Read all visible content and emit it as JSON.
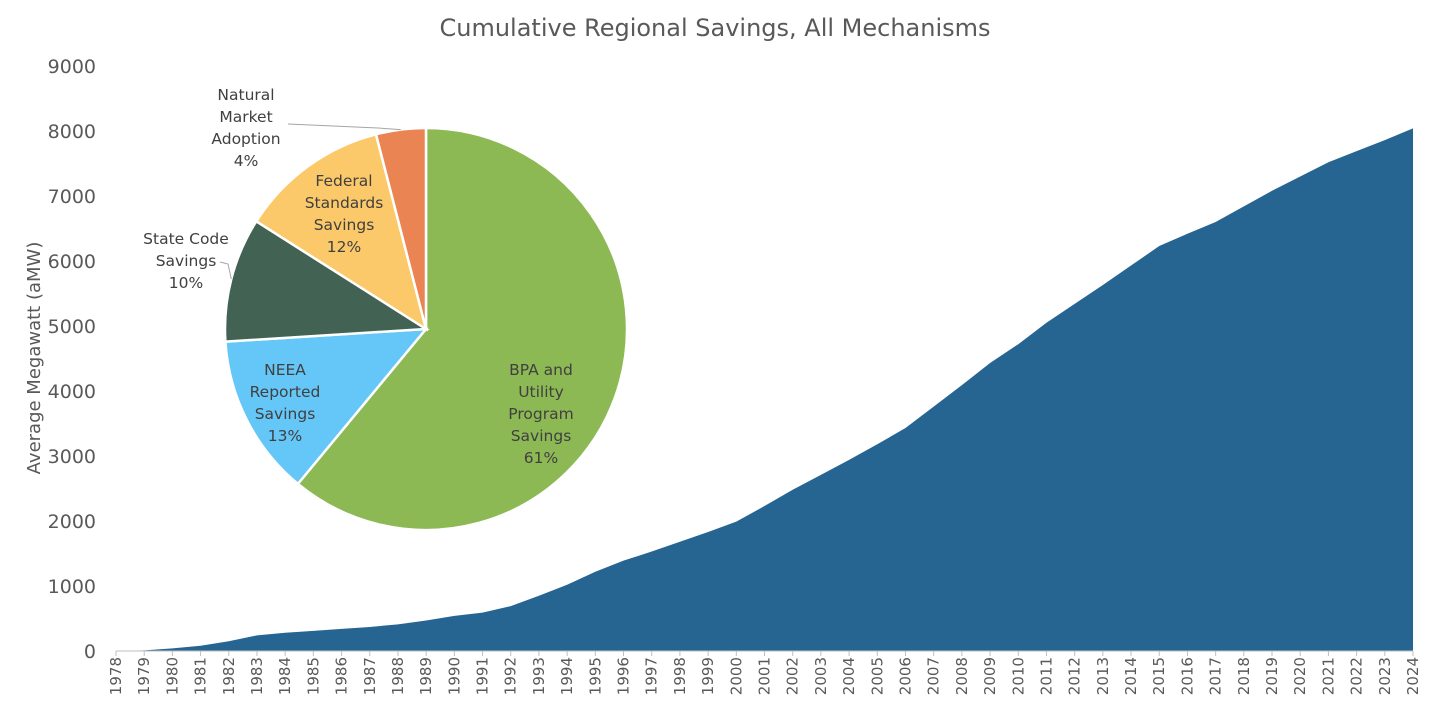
{
  "chart_data": [
    {
      "type": "area",
      "title": "Cumulative Regional Savings, All Mechanisms",
      "xlabel": "",
      "ylabel": "Average Megawatt (aMW)",
      "ylim": [
        0,
        9000
      ],
      "yticks": [
        0,
        1000,
        2000,
        3000,
        4000,
        5000,
        6000,
        7000,
        8000,
        9000
      ],
      "grid": false,
      "legend": "none",
      "colors": {
        "area": "#266492",
        "text": "#595959"
      },
      "x": [
        "1978",
        "1979",
        "1980",
        "1981",
        "1982",
        "1983",
        "1984",
        "1985",
        "1986",
        "1987",
        "1988",
        "1989",
        "1990",
        "1991",
        "1992",
        "1993",
        "1994",
        "1995",
        "1996",
        "1997",
        "1998",
        "1999",
        "2000",
        "2001",
        "2002",
        "2003",
        "2004",
        "2005",
        "2006",
        "2007",
        "2008",
        "2009",
        "2010",
        "2011",
        "2012",
        "2013",
        "2014",
        "2015",
        "2016",
        "2017",
        "2018",
        "2019",
        "2020",
        "2021",
        "2022",
        "2023",
        "2024"
      ],
      "values": [
        0,
        10,
        40,
        80,
        150,
        240,
        280,
        310,
        340,
        370,
        410,
        470,
        540,
        590,
        690,
        850,
        1020,
        1220,
        1390,
        1530,
        1680,
        1830,
        1990,
        2230,
        2480,
        2710,
        2940,
        3180,
        3430,
        3760,
        4090,
        4430,
        4720,
        5050,
        5340,
        5630,
        5930,
        6230,
        6420,
        6600,
        6840,
        7080,
        7300,
        7520,
        7690,
        7860,
        8040
      ]
    },
    {
      "type": "pie",
      "slices": [
        {
          "label_lines": [
            "BPA and",
            "Utility",
            "Program",
            "Savings",
            "61%"
          ],
          "value": 61,
          "color": "#8DB955"
        },
        {
          "label_lines": [
            "NEEA",
            "Reported",
            "Savings",
            "13%"
          ],
          "value": 13,
          "color": "#65C7F8"
        },
        {
          "label_lines": [
            "State Code",
            "Savings",
            "10%"
          ],
          "value": 10,
          "color": "#426353"
        },
        {
          "label_lines": [
            "Federal",
            "Standards",
            "Savings",
            "12%"
          ],
          "value": 12,
          "color": "#FCC96A"
        },
        {
          "label_lines": [
            "Natural",
            "Market",
            "Adoption",
            "4%"
          ],
          "value": 4,
          "color": "#EA8452"
        }
      ]
    }
  ]
}
